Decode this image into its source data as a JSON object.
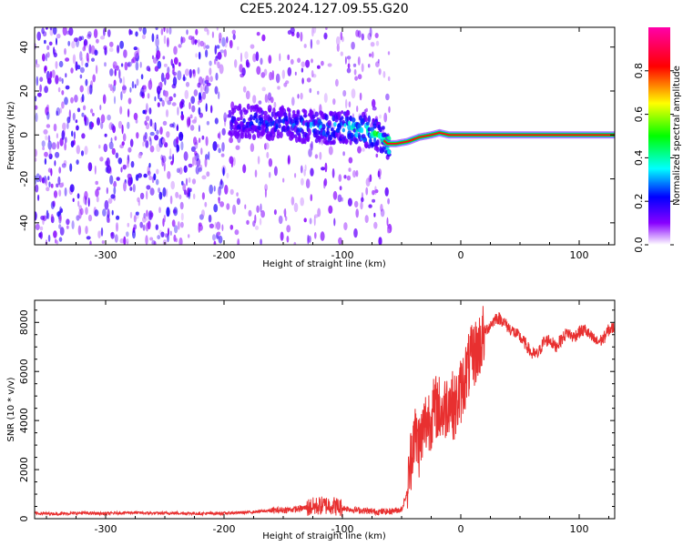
{
  "title": "C2E5.2024.127.09.55.G20",
  "chart_data": [
    {
      "type": "heatmap",
      "xlabel": "Height of straight line (km)",
      "ylabel": "Frequency (Hz)",
      "xlim": [
        -360,
        130
      ],
      "ylim": [
        -50,
        49
      ],
      "x_ticks": [
        -300,
        -200,
        -100,
        0,
        100
      ],
      "y_ticks": [
        -40,
        -20,
        0,
        20,
        40
      ],
      "colorbar": {
        "label": "Normalized spectral amplitude",
        "range": [
          0.0,
          1.0
        ],
        "ticks": [
          0.0,
          0.2,
          0.4,
          0.6,
          0.8
        ],
        "colormap": [
          "#ffffff",
          "#8800ff",
          "#0000ff",
          "#00ffff",
          "#00ff00",
          "#ffff00",
          "#ff0000",
          "#ff00aa"
        ]
      },
      "ridge": {
        "x": [
          -190,
          -170,
          -150,
          -130,
          -110,
          -95,
          -80,
          -70,
          -62,
          -55,
          -45,
          -35,
          -25,
          -18,
          -10,
          0,
          20,
          60,
          100,
          130
        ],
        "y": [
          6,
          6,
          5,
          4,
          3,
          4,
          2,
          0,
          -4,
          -4,
          -3,
          -1,
          0,
          1,
          0,
          0,
          0,
          0,
          0,
          0
        ],
        "amplitude": [
          0.25,
          0.3,
          0.3,
          0.35,
          0.4,
          0.45,
          0.5,
          0.55,
          0.6,
          0.65,
          0.7,
          0.75,
          0.8,
          0.85,
          0.85,
          0.9,
          0.9,
          0.9,
          0.9,
          0.9
        ]
      }
    },
    {
      "type": "line",
      "xlabel": "Height of straight line (km)",
      "ylabel": "SNR (10 * v/v)",
      "xlim": [
        -360,
        130
      ],
      "ylim": [
        0,
        8900
      ],
      "x_ticks": [
        -300,
        -200,
        -100,
        0,
        100
      ],
      "y_ticks": [
        0,
        2000,
        4000,
        6000,
        8000
      ],
      "color": "#e83030",
      "series": [
        {
          "x": [
            -360,
            -340,
            -320,
            -300,
            -280,
            -260,
            -240,
            -220,
            -200,
            -180,
            -160,
            -140,
            -120,
            -110,
            -100,
            -90,
            -80,
            -70,
            -60,
            -50,
            -45,
            -40,
            -35,
            -30,
            -25,
            -20,
            -15,
            -10,
            -5,
            0,
            5,
            10,
            15,
            20,
            25,
            30,
            35,
            40,
            45,
            50,
            55,
            60,
            65,
            70,
            75,
            80,
            85,
            90,
            95,
            100,
            105,
            110,
            115,
            120,
            125,
            130
          ],
          "y": [
            220,
            200,
            230,
            210,
            250,
            220,
            230,
            210,
            220,
            260,
            330,
            380,
            520,
            560,
            440,
            360,
            320,
            280,
            300,
            380,
            1100,
            3500,
            3000,
            3900,
            4200,
            4600,
            4300,
            4900,
            4500,
            5200,
            6000,
            6600,
            7000,
            7600,
            7900,
            8200,
            8100,
            7800,
            7600,
            7400,
            7100,
            6700,
            6700,
            7200,
            7300,
            7000,
            7300,
            7600,
            7400,
            7600,
            7700,
            7400,
            7200,
            7300,
            7700,
            7800
          ]
        }
      ]
    }
  ]
}
